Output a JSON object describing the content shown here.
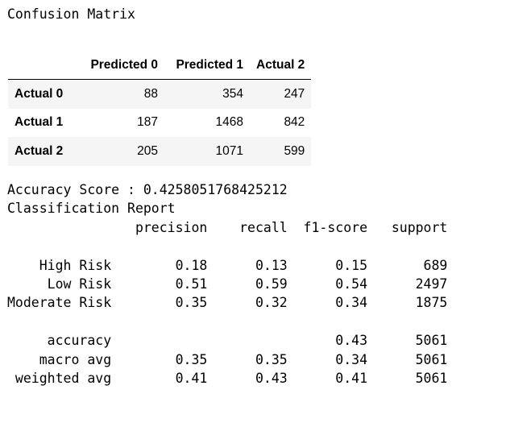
{
  "output": {
    "title": "Confusion Matrix",
    "confusion_table": {
      "columns": [
        "",
        "Predicted 0",
        "Predicted 1",
        "Actual 2"
      ],
      "rows": [
        {
          "label": "Actual 0",
          "values": [
            "88",
            "354",
            "247"
          ]
        },
        {
          "label": "Actual 1",
          "values": [
            "187",
            "1468",
            "842"
          ]
        },
        {
          "label": "Actual 2",
          "values": [
            "205",
            "1071",
            "599"
          ]
        }
      ]
    },
    "accuracy_line": "Accuracy Score : 0.4258051768425212",
    "report_heading": "Classification Report",
    "report_columns": [
      "precision",
      "recall",
      "f1-score",
      "support"
    ],
    "report_rows": [
      {
        "label": "High Risk",
        "precision": "0.18",
        "recall": "0.13",
        "f1": "0.15",
        "support": "689"
      },
      {
        "label": "Low Risk",
        "precision": "0.51",
        "recall": "0.59",
        "f1": "0.54",
        "support": "2497"
      },
      {
        "label": "Moderate Risk",
        "precision": "0.35",
        "recall": "0.32",
        "f1": "0.34",
        "support": "1875"
      }
    ],
    "report_summary": [
      {
        "label": "accuracy",
        "precision": "",
        "recall": "",
        "f1": "0.43",
        "support": "5061"
      },
      {
        "label": "macro avg",
        "precision": "0.35",
        "recall": "0.35",
        "f1": "0.34",
        "support": "5061"
      },
      {
        "label": "weighted avg",
        "precision": "0.41",
        "recall": "0.43",
        "f1": "0.41",
        "support": "5061"
      }
    ]
  }
}
